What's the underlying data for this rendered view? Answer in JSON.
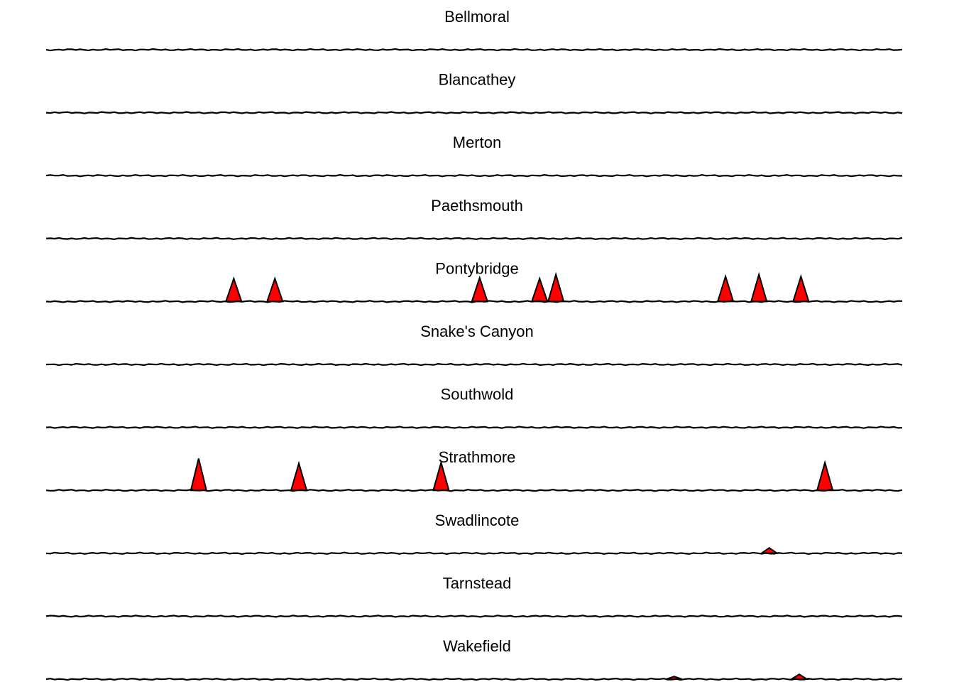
{
  "chart_data": {
    "type": "area",
    "xlim": [
      0,
      100
    ],
    "ylim": [
      0,
      1
    ],
    "grid": false,
    "axes_visible": false,
    "fill_color": "#ff0000",
    "line_color": "#000000",
    "panels": [
      {
        "title": "Bellmoral",
        "peaks": []
      },
      {
        "title": "Blancathey",
        "peaks": []
      },
      {
        "title": "Merton",
        "peaks": []
      },
      {
        "title": "Paethsmouth",
        "peaks": []
      },
      {
        "title": "Pontybridge",
        "peaks": [
          {
            "x": 21.9,
            "height": 0.85
          },
          {
            "x": 26.7,
            "height": 0.85
          },
          {
            "x": 50.6,
            "height": 0.88
          },
          {
            "x": 57.6,
            "height": 0.85
          },
          {
            "x": 59.5,
            "height": 1.0
          },
          {
            "x": 79.3,
            "height": 0.93
          },
          {
            "x": 83.2,
            "height": 1.0
          },
          {
            "x": 88.1,
            "height": 0.93
          }
        ]
      },
      {
        "title": "Snake's Canyon",
        "peaks": []
      },
      {
        "title": "Southwold",
        "peaks": []
      },
      {
        "title": "Strathmore",
        "peaks": [
          {
            "x": 17.8,
            "height": 1.18
          },
          {
            "x": 29.5,
            "height": 1.0
          },
          {
            "x": 46.1,
            "height": 1.03
          },
          {
            "x": 90.9,
            "height": 1.03
          }
        ]
      },
      {
        "title": "Swadlincote",
        "peaks": [
          {
            "x": 84.4,
            "height": 0.2
          }
        ]
      },
      {
        "title": "Tarnstead",
        "peaks": []
      },
      {
        "title": "Wakefield",
        "peaks": [
          {
            "x": 73.3,
            "height": 0.1
          },
          {
            "x": 87.9,
            "height": 0.18
          }
        ]
      }
    ]
  }
}
